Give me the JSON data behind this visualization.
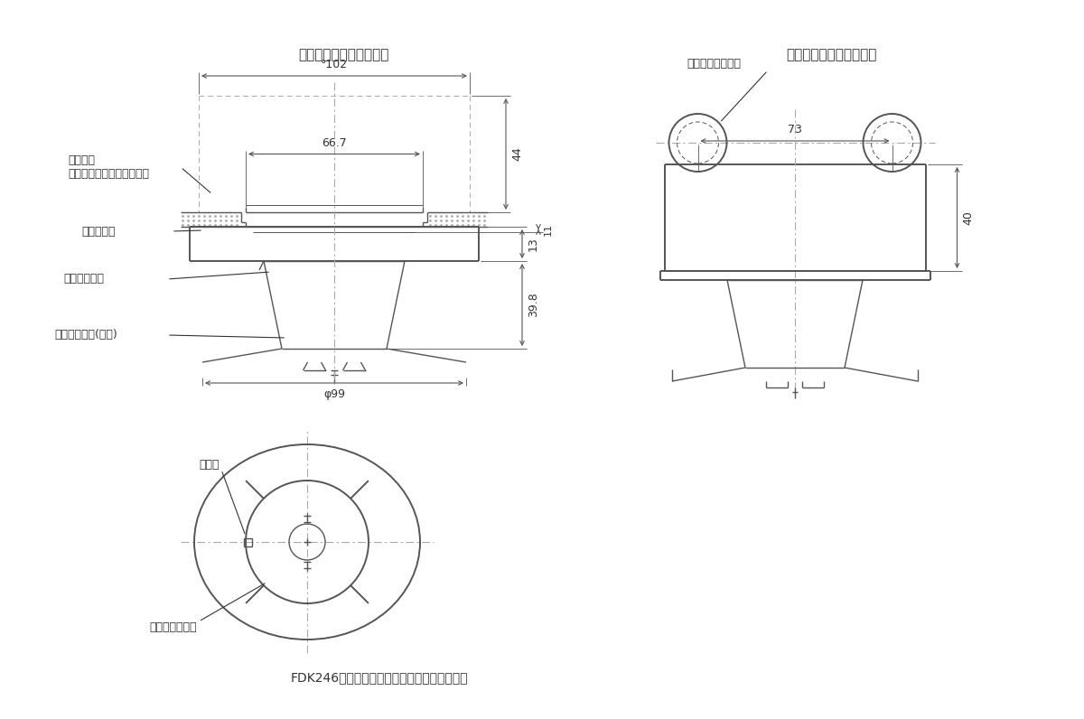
{
  "line_color": "#555555",
  "dim_color": "#555555",
  "text_color": "#333333",
  "title_left": "埋込ボックス使用の場合",
  "title_right": "露出ボックス使用の場合",
  "label_box": "大形四角\nアウトレットボックス深形",
  "label_cover": "塗代カバー",
  "label_base": "露出型ベース",
  "label_head": "感知器ヘッド(本体)",
  "label_round_box": "丸形露出ボックス",
  "label_confirm": "確認灯",
  "label_sticker": "種別表示シール",
  "dim_102": "°102",
  "dim_66_7": "66.7",
  "dim_44": "44",
  "dim_13": "13",
  "dim_11": "11",
  "dim_39_8": "39.8",
  "dim_phi99": "φ99",
  "dim_73": "73",
  "dim_40": "40",
  "caption": "FDK246型光電式スポット型感知器（露出型）"
}
